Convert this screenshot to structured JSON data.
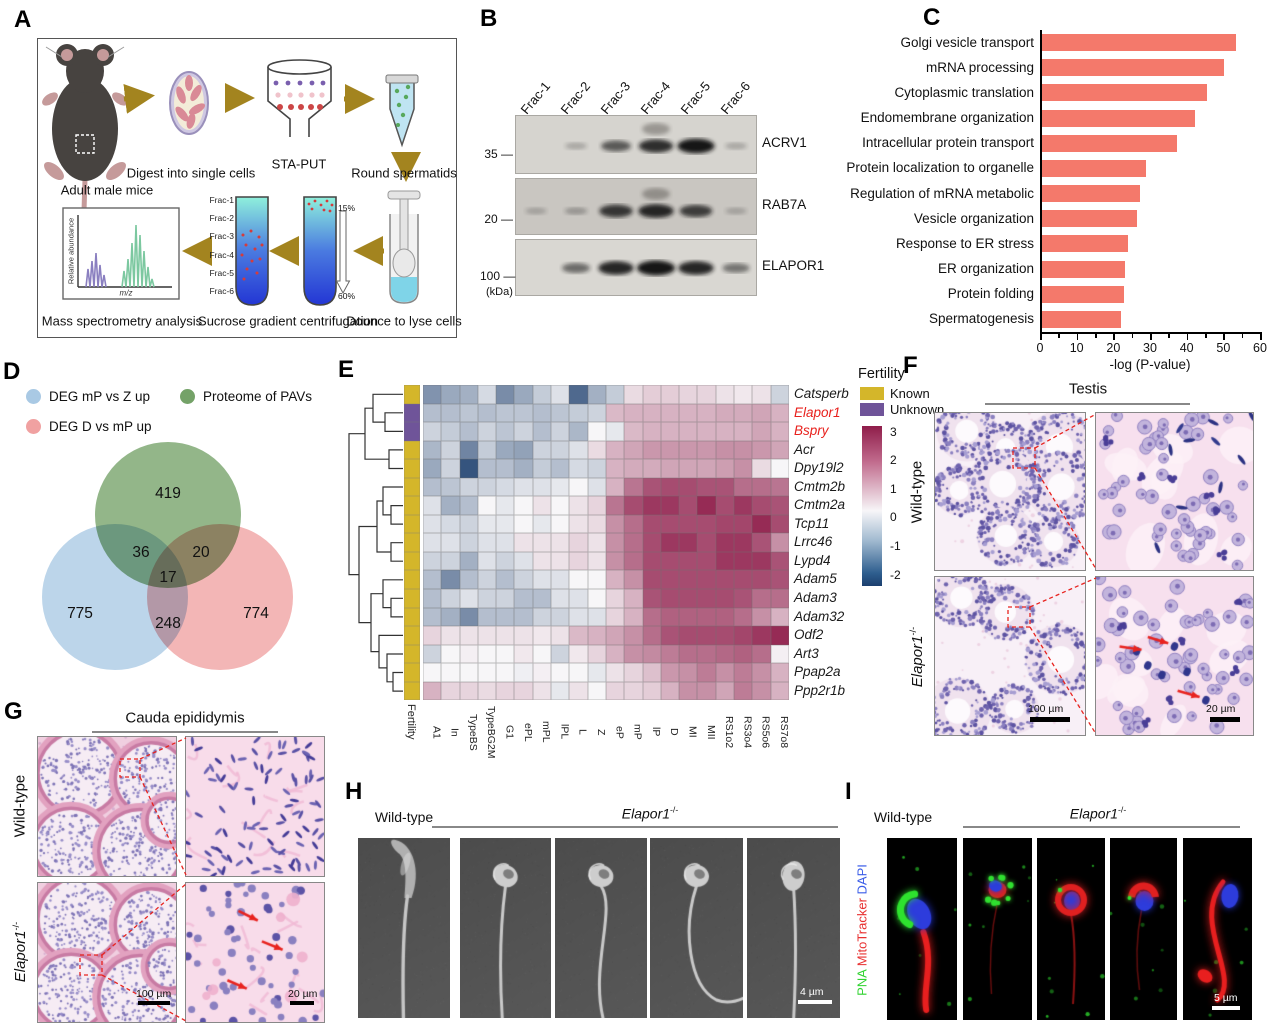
{
  "panels": {
    "A": {
      "label": "A",
      "adult_mice": "Adult\nmale mice",
      "digest": "Digest into\nsingle cells",
      "staput": "STA-PUT",
      "round_spermatids": "Round\nspermatids",
      "dounce": "Dounce to\nlyse cells",
      "sucrose": "Sucrose gradient\ncentrifugation",
      "mass_spec": "Mass spectrometry\nanalysis",
      "fractions": [
        "Frac-1",
        "Frac-2",
        "Frac-3",
        "Frac-4",
        "Frac-5",
        "Frac-6"
      ],
      "grad_top": "15%",
      "grad_bottom": "60%",
      "ms_ylabel": "Relative abundance",
      "ms_xlabel": "m/z"
    },
    "B": {
      "label": "B",
      "lanes": [
        "Frac-1",
        "Frac-2",
        "Frac-3",
        "Frac-4",
        "Frac-5",
        "Frac-6"
      ],
      "blots": [
        {
          "name": "ACRV1",
          "marker": "35",
          "bands": [
            0,
            0.1,
            0.55,
            0.8,
            0.95,
            0.1
          ],
          "upper_smear_lane": 4
        },
        {
          "name": "RAB7A",
          "marker": "20",
          "bands": [
            0.08,
            0.15,
            0.75,
            0.85,
            0.7,
            0.08
          ],
          "upper_smear_lane": 4
        },
        {
          "name": "ELAPOR1",
          "marker": "100",
          "bands": [
            0,
            0.45,
            0.85,
            1,
            0.85,
            0.4
          ],
          "upper_smear_lane": 0
        }
      ],
      "kda": "(kDa)"
    },
    "C": {
      "label": "C"
    },
    "D": {
      "label": "D"
    },
    "E": {
      "label": "E",
      "legend_title": "Fertility",
      "known": "Known",
      "unknown": "Unknown",
      "axis_label": "Fertility",
      "colorbar_ticks": [
        3,
        2,
        1,
        0,
        -1,
        -2
      ]
    },
    "F": {
      "label": "F",
      "title": "Testis",
      "wt": "Wild-type",
      "ko_base": "Elapor1",
      "ko_sup": "-/-",
      "scale_low": "100 µm",
      "scale_high": "20 µm"
    },
    "G": {
      "label": "G",
      "title": "Cauda epididymis",
      "wt": "Wild-type",
      "ko_base": "Elapor1",
      "ko_sup": "-/-",
      "scale_low": "100 µm",
      "scale_high": "20 µm"
    },
    "H": {
      "label": "H",
      "wt": "Wild-type",
      "ko_base": "Elapor1",
      "ko_sup": "-/-",
      "scale": "4 µm"
    },
    "I": {
      "label": "I",
      "wt": "Wild-type",
      "ko_base": "Elapor1",
      "ko_sup": "-/-",
      "stain_pna": "PNA",
      "stain_mito": "MitoTracker",
      "stain_dapi": "DAPI",
      "stain_colors": {
        "pna": "#2fd32f",
        "mito": "#e83030",
        "dapi": "#3a5ce8"
      },
      "scale": "5 µm"
    }
  },
  "chart_data": [
    {
      "type": "bar",
      "orientation": "horizontal",
      "categories": [
        "Golgi vesicle transport",
        "mRNA processing",
        "Cytoplasmic translation",
        "Endomembrane organization",
        "Intracellular protein transport",
        "Protein localization to organelle",
        "Regulation of mRNA metabolic",
        "Vesicle organization",
        "Response to ER stress",
        "ER organization",
        "Protein folding",
        "Spermatogenesis"
      ],
      "values": [
        53,
        49.5,
        45,
        41.8,
        36.8,
        28.4,
        26.6,
        26,
        23.4,
        22.5,
        22.4,
        21.6
      ],
      "xlabel": "-log (P-value)",
      "ylabel": "",
      "xlim": [
        0,
        60
      ],
      "xticks": [
        0,
        10,
        20,
        30,
        40,
        50,
        60
      ],
      "bar_color": "#f4796b",
      "grid": false
    },
    {
      "type": "venn",
      "sets": [
        {
          "name": "DEG mP vs Z up",
          "color": "#a9c9e4"
        },
        {
          "name": "Proteome of PAVs",
          "color": "#74a268"
        },
        {
          "name": "DEG D vs mP up",
          "color": "#f0a1a1"
        }
      ],
      "regions": {
        "proteome_only": 419,
        "degmpz_and_proteome": 36,
        "proteome_and_degdmp": 20,
        "all_three": 17,
        "degmpz_only": 775,
        "degmpz_and_degdmp": 248,
        "degdmp_only": 774
      }
    },
    {
      "type": "heatmap",
      "columns": [
        "A1",
        "In",
        "TypeBS",
        "TypeBG2M",
        "G1",
        "ePL",
        "mPL",
        "lPL",
        "L",
        "Z",
        "eP",
        "mP",
        "lP",
        "D",
        "MI",
        "MII",
        "RS1o2",
        "RS3o4",
        "RS5o6",
        "RS7o8"
      ],
      "color_scale": {
        "high": "#8f1d4a",
        "mid": "#f7f6f8",
        "low": "#1c3f6e",
        "ticks": [
          3,
          2,
          1,
          0,
          -1,
          -2
        ]
      },
      "annotation_colors": {
        "Known": "#d4b62a",
        "Unknown": "#6f5499"
      },
      "rows": [
        {
          "gene": "Catsperb",
          "fertility": "Known",
          "highlight": false,
          "values": [
            -1.4,
            -1.1,
            -1.0,
            -0.4,
            -1.5,
            -1.1,
            -0.6,
            -0.3,
            -2.0,
            -1.0,
            -0.6,
            0.4,
            0.6,
            0.6,
            0.5,
            0.5,
            0.3,
            0.2,
            0.3,
            -0.5
          ]
        },
        {
          "gene": "Elapor1",
          "fertility": "Unknown",
          "highlight": true,
          "values": [
            -0.8,
            -0.8,
            -0.7,
            -0.8,
            -0.7,
            -0.7,
            -0.8,
            -0.7,
            -0.6,
            -0.5,
            0.9,
            1.0,
            1.0,
            1.0,
            1.0,
            1.0,
            1.1,
            1.1,
            1.2,
            1.0
          ]
        },
        {
          "gene": "Bspry",
          "fertility": "Unknown",
          "highlight": true,
          "values": [
            -0.5,
            -0.6,
            -0.8,
            -0.5,
            -0.7,
            -0.5,
            -0.8,
            -0.5,
            -0.9,
            0.0,
            -0.2,
            0.9,
            1.0,
            1.0,
            1.0,
            1.0,
            1.0,
            1.0,
            1.2,
            1.0
          ]
        },
        {
          "gene": "Acr",
          "fertility": "Known",
          "highlight": false,
          "values": [
            -0.9,
            -0.5,
            -1.6,
            -0.6,
            -1.1,
            -1.2,
            -0.5,
            -0.5,
            -0.3,
            0.4,
            1.0,
            1.2,
            1.4,
            1.4,
            1.4,
            1.4,
            1.5,
            1.5,
            1.4,
            1.2
          ]
        },
        {
          "gene": "Dpy19l2",
          "fertility": "Known",
          "highlight": false,
          "values": [
            -1.1,
            -0.5,
            -2.3,
            -0.8,
            -0.8,
            -1.0,
            -0.6,
            -0.8,
            -0.4,
            -0.5,
            1.0,
            1.1,
            1.1,
            1.2,
            1.2,
            1.2,
            1.3,
            1.5,
            0.4,
            0.0
          ]
        },
        {
          "gene": "Cmtm2b",
          "fertility": "Known",
          "highlight": false,
          "values": [
            -0.8,
            -0.7,
            -0.5,
            -0.5,
            -0.4,
            -0.3,
            -0.3,
            -0.2,
            0.0,
            -0.3,
            1.0,
            1.9,
            2.4,
            2.5,
            2.5,
            2.4,
            2.4,
            2.0,
            2.0,
            1.9
          ]
        },
        {
          "gene": "Cmtm2a",
          "fertility": "Known",
          "highlight": false,
          "values": [
            -0.3,
            -1.0,
            -0.8,
            0.0,
            -0.2,
            0.0,
            0.3,
            0.0,
            0.3,
            0.5,
            1.9,
            2.5,
            2.8,
            2.8,
            2.5,
            3.0,
            2.5,
            2.8,
            2.5,
            2.4
          ]
        },
        {
          "gene": "Tcp11",
          "fertility": "Known",
          "highlight": false,
          "values": [
            -0.3,
            -0.4,
            -0.5,
            -0.2,
            -0.2,
            0.0,
            -0.2,
            0.0,
            0.3,
            0.4,
            1.5,
            2.0,
            2.5,
            2.5,
            2.5,
            2.5,
            2.6,
            2.6,
            3.0,
            2.5
          ]
        },
        {
          "gene": "Lrrc46",
          "fertility": "Known",
          "highlight": false,
          "values": [
            -0.3,
            -0.3,
            -0.5,
            -0.3,
            -0.3,
            0.3,
            0.3,
            0.3,
            0.5,
            0.3,
            1.5,
            2.0,
            2.5,
            2.8,
            2.8,
            2.5,
            2.8,
            2.8,
            2.4,
            1.5
          ]
        },
        {
          "gene": "Lypd4",
          "fertility": "Known",
          "highlight": false,
          "values": [
            -0.5,
            -0.5,
            -1.0,
            -0.3,
            -0.5,
            -0.3,
            0.3,
            0.3,
            0.5,
            0.3,
            1.5,
            2.0,
            2.5,
            2.5,
            2.5,
            2.5,
            2.8,
            2.8,
            2.8,
            2.4
          ]
        },
        {
          "gene": "Adam5",
          "fertility": "Known",
          "highlight": false,
          "values": [
            -0.8,
            -1.5,
            -0.8,
            -0.5,
            -0.8,
            -0.5,
            -0.3,
            -0.3,
            0.0,
            0.0,
            1.0,
            1.5,
            2.5,
            2.5,
            2.5,
            2.5,
            2.5,
            2.5,
            2.5,
            2.4
          ]
        },
        {
          "gene": "Adam3",
          "fertility": "Known",
          "highlight": false,
          "values": [
            -0.8,
            -0.5,
            -0.3,
            -0.5,
            -0.5,
            -0.8,
            -0.8,
            -0.3,
            -0.3,
            0.0,
            0.5,
            1.0,
            2.4,
            2.5,
            2.5,
            2.5,
            2.5,
            2.4,
            2.0,
            2.0
          ]
        },
        {
          "gene": "Adam32",
          "fertility": "Known",
          "highlight": false,
          "values": [
            -0.8,
            -1.0,
            -1.5,
            -0.8,
            -0.8,
            -0.8,
            -0.5,
            -0.5,
            -0.3,
            -0.3,
            0.5,
            1.0,
            2.0,
            2.2,
            2.2,
            2.2,
            2.2,
            2.0,
            1.5,
            1.0
          ]
        },
        {
          "gene": "Odf2",
          "fertility": "Known",
          "highlight": false,
          "values": [
            0.5,
            0.3,
            0.3,
            0.3,
            0.3,
            0.3,
            0.2,
            0.3,
            0.9,
            1.0,
            1.2,
            1.5,
            2.0,
            2.4,
            2.5,
            2.5,
            2.5,
            2.6,
            2.8,
            3.0
          ]
        },
        {
          "gene": "Art3",
          "fertility": "Known",
          "highlight": false,
          "values": [
            -0.5,
            0.0,
            0.1,
            0.0,
            0.0,
            0.2,
            0.0,
            -0.5,
            0.2,
            0.5,
            1.0,
            1.5,
            1.6,
            1.8,
            2.0,
            2.0,
            2.1,
            2.2,
            2.0,
            0.1
          ]
        },
        {
          "gene": "Ppap2a",
          "fertility": "Known",
          "highlight": false,
          "values": [
            0.0,
            0.0,
            0.0,
            0.0,
            0.0,
            -0.1,
            0.1,
            0.0,
            0.0,
            -0.2,
            0.3,
            0.5,
            0.8,
            1.4,
            1.5,
            1.8,
            1.5,
            1.8,
            1.5,
            1.0
          ]
        },
        {
          "gene": "Ppp2r1b",
          "fertility": "Known",
          "highlight": false,
          "values": [
            1.0,
            0.5,
            0.5,
            0.4,
            0.5,
            0.5,
            0.3,
            -0.2,
            0.3,
            0.0,
            0.5,
            0.5,
            0.6,
            1.0,
            1.5,
            1.5,
            1.2,
            1.8,
            1.5,
            1.0
          ]
        }
      ]
    }
  ]
}
